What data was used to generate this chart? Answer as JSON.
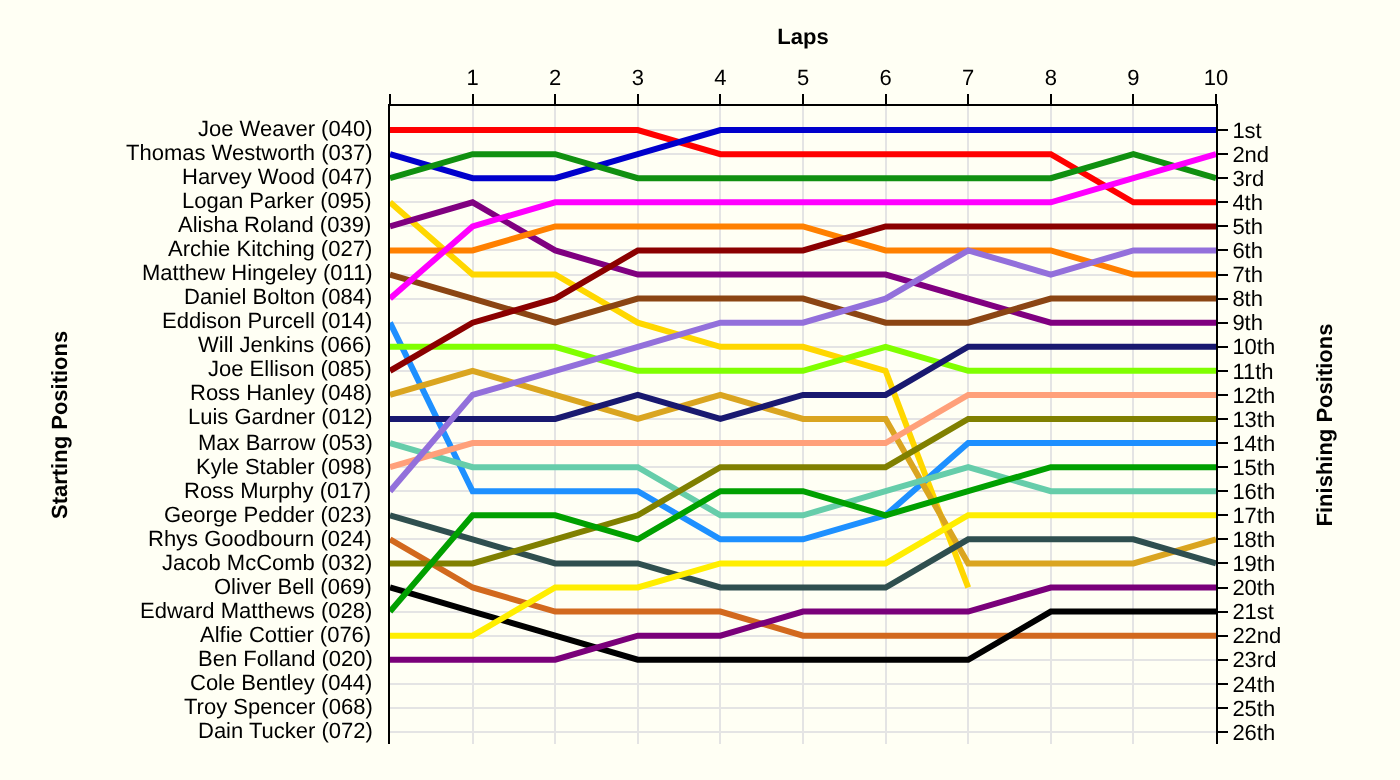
{
  "chart_data": {
    "type": "line",
    "xlabel": "Laps",
    "ylabel": "Finishing Positions",
    "x": [
      0,
      1,
      2,
      3,
      4,
      5,
      6,
      7,
      8,
      9,
      10
    ],
    "xlim": [
      0,
      10
    ],
    "xticks": [
      {
        "value": 0,
        "label": null
      },
      1,
      2,
      3,
      4,
      5,
      6,
      7,
      8,
      9,
      10
    ],
    "ylim": [
      26.5,
      0
    ],
    "yticks": [
      {
        "value": 1,
        "label": "1st"
      },
      {
        "value": 2,
        "label": "2nd"
      },
      {
        "value": 3,
        "label": "3rd"
      },
      {
        "value": 4,
        "label": "4th"
      },
      {
        "value": 5,
        "label": "5th"
      },
      {
        "value": 6,
        "label": "6th"
      },
      {
        "value": 7,
        "label": "7th"
      },
      {
        "value": 8,
        "label": "8th"
      },
      {
        "value": 9,
        "label": "9th"
      },
      {
        "value": 10,
        "label": "10th"
      },
      {
        "value": 11,
        "label": "11th"
      },
      {
        "value": 12,
        "label": "12th"
      },
      {
        "value": 13,
        "label": "13th"
      },
      {
        "value": 14,
        "label": "14th"
      },
      {
        "value": 15,
        "label": "15th"
      },
      {
        "value": 16,
        "label": "16th"
      },
      {
        "value": 17,
        "label": "17th"
      },
      {
        "value": 18,
        "label": "18th"
      },
      {
        "value": 19,
        "label": "19th"
      },
      {
        "value": 20,
        "label": "20th"
      },
      {
        "value": 21,
        "label": "21st"
      },
      {
        "value": 22,
        "label": "22nd"
      },
      {
        "value": 23,
        "label": "23rd"
      },
      {
        "value": 24,
        "label": "24th"
      },
      {
        "value": 25,
        "label": "25th"
      },
      {
        "value": 26,
        "label": "26th"
      }
    ],
    "grid": true,
    "legend": false,
    "marker": "none",
    "line_style": "solid",
    "annotations": [
      "Starting Positions",
      "Cole Bentley (044)",
      "Troy Spencer (068)",
      "Dain Tucker (072)"
    ],
    "series": [
      {
        "name": "Joe Weaver (040)",
        "color": "#ff0000",
        "values": [
          1,
          1,
          1,
          1,
          2,
          2,
          2,
          2,
          2,
          4,
          4
        ]
      },
      {
        "name": "Thomas Westworth (037)",
        "color": "#0000cc",
        "values": [
          2,
          3,
          3,
          2,
          1,
          1,
          1,
          1,
          1,
          1,
          1
        ]
      },
      {
        "name": "Harvey Wood (047)",
        "color": "#109010",
        "values": [
          3,
          2,
          2,
          3,
          3,
          3,
          3,
          3,
          3,
          2,
          3
        ]
      },
      {
        "name": "Logan Parker (095)",
        "color": "#ffd700",
        "values": [
          4,
          7,
          7,
          9,
          10,
          10,
          11,
          20,
          null,
          null,
          null
        ]
      },
      {
        "name": "Alisha Roland (039)",
        "color": "#800080",
        "values": [
          5,
          4,
          6,
          7,
          7,
          7,
          7,
          8,
          9,
          9,
          9
        ]
      },
      {
        "name": "Archie Kitching (027)",
        "color": "#ff8000",
        "values": [
          6,
          6,
          5,
          5,
          5,
          5,
          6,
          6,
          6,
          7,
          7
        ]
      },
      {
        "name": "Matthew Hingeley (011)",
        "color": "#8b4513",
        "values": [
          7,
          8,
          9,
          8,
          8,
          8,
          9,
          9,
          8,
          8,
          8
        ]
      },
      {
        "name": "Daniel Bolton (084)",
        "color": "#ff00ff",
        "values": [
          8,
          5,
          4,
          4,
          4,
          4,
          4,
          4,
          4,
          3,
          2
        ]
      },
      {
        "name": "Eddison Purcell (014)",
        "color": "#1e90ff",
        "values": [
          9,
          16,
          16,
          16,
          18,
          18,
          17,
          14,
          14,
          14,
          14
        ]
      },
      {
        "name": "Will Jenkins (066)",
        "color": "#80ff00",
        "values": [
          10,
          10,
          10,
          11,
          11,
          11,
          10,
          11,
          11,
          11,
          11
        ]
      },
      {
        "name": "Joe Ellison (085)",
        "color": "#8b0000",
        "values": [
          11,
          9,
          8,
          6,
          6,
          6,
          5,
          5,
          5,
          5,
          5
        ]
      },
      {
        "name": "Ross Hanley (048)",
        "color": "#daa520",
        "values": [
          12,
          11,
          12,
          13,
          12,
          13,
          13,
          19,
          19,
          19,
          18
        ]
      },
      {
        "name": "Luis Gardner (012)",
        "color": "#191970",
        "values": [
          13,
          13,
          13,
          12,
          13,
          12,
          12,
          10,
          10,
          10,
          10
        ]
      },
      {
        "name": "Max Barrow (053)",
        "color": "#66cdaa",
        "values": [
          14,
          15,
          15,
          15,
          17,
          17,
          16,
          15,
          16,
          16,
          16
        ]
      },
      {
        "name": "Kyle Stabler (098)",
        "color": "#ffa07a",
        "values": [
          15,
          14,
          14,
          14,
          14,
          14,
          14,
          12,
          12,
          12,
          12
        ]
      },
      {
        "name": "Ross Murphy (017)",
        "color": "#9370db",
        "values": [
          16,
          12,
          11,
          10,
          9,
          9,
          8,
          6,
          7,
          6,
          6
        ]
      },
      {
        "name": "George Pedder (023)",
        "color": "#2f4f4f",
        "values": [
          17,
          18,
          19,
          19,
          20,
          20,
          20,
          18,
          18,
          18,
          19
        ]
      },
      {
        "name": "Rhys Goodbourn (024)",
        "color": "#d2691e",
        "values": [
          18,
          20,
          21,
          21,
          21,
          22,
          22,
          22,
          22,
          22,
          22
        ]
      },
      {
        "name": "Jacob McComb (032)",
        "color": "#808000",
        "values": [
          19,
          19,
          18,
          17,
          15,
          15,
          15,
          13,
          13,
          13,
          13
        ]
      },
      {
        "name": "Oliver Bell (069)",
        "color": "#000000",
        "values": [
          20,
          21,
          22,
          23,
          23,
          23,
          23,
          23,
          21,
          21,
          21
        ]
      },
      {
        "name": "Edward Matthews (028)",
        "color": "#00a000",
        "values": [
          21,
          17,
          17,
          18,
          16,
          16,
          17,
          16,
          15,
          15,
          15
        ]
      },
      {
        "name": "Alfie Cottier (076)",
        "color": "#ffee00",
        "values": [
          22,
          22,
          20,
          20,
          19,
          19,
          19,
          17,
          17,
          17,
          17
        ]
      },
      {
        "name": "Ben Folland (020)",
        "color": "#7a007a",
        "values": [
          23,
          23,
          23,
          22,
          22,
          21,
          21,
          21,
          20,
          20,
          20
        ]
      }
    ]
  }
}
